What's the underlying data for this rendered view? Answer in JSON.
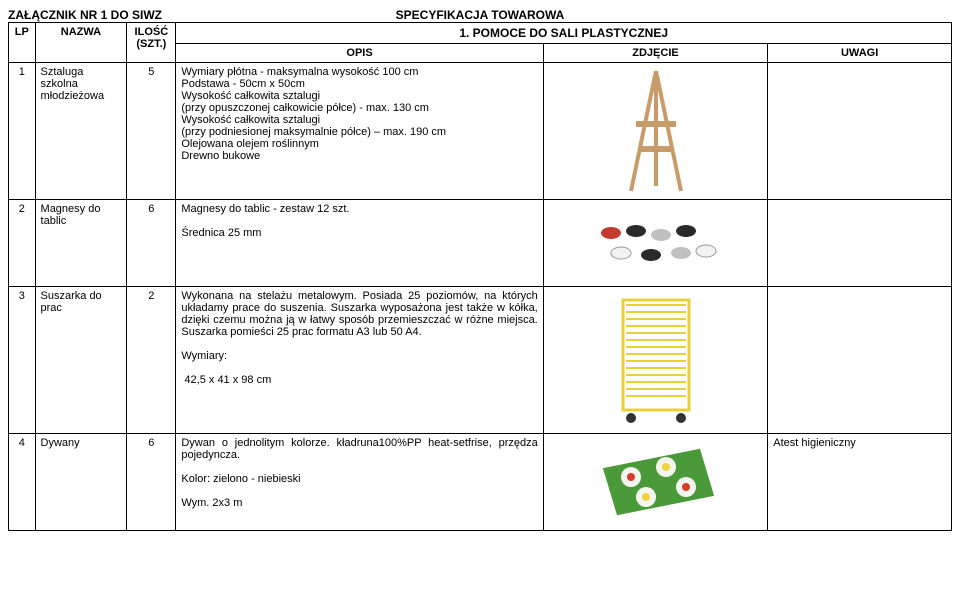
{
  "doc": {
    "attachment_title": "ZAŁĄCZNIK NR 1 DO SIWZ",
    "spec_title": "SPECYFIKACJA TOWAROWA",
    "section_heading": "1. POMOCE DO SALI PLASTYCZNEJ"
  },
  "columns": {
    "lp": "LP",
    "nazwa": "NAZWA",
    "ilosc": "ILOŚĆ (SZT.)",
    "opis": "OPIS",
    "zdjecie": "ZDJĘCIE",
    "uwagi": "UWAGI"
  },
  "rows": [
    {
      "lp": "1",
      "nazwa": "Sztaluga szkolna młodzieżowa",
      "ilosc": "5",
      "opis": "Wymiary płótna - maksymalna wysokość 100 cm\nPodstawa - 50cm x 50cm\nWysokość całkowita sztalugi\n(przy opuszczonej całkowicie półce) - max. 130 cm\nWysokość całkowita sztalugi\n(przy podniesionej maksymalnie półce) – max. 190 cm\nOlejowana olejem roślinnym\nDrewno bukowe",
      "uwagi": "",
      "image": "easel"
    },
    {
      "lp": "2",
      "nazwa": "Magnesy do tablic",
      "ilosc": "6",
      "opis": "Magnesy do tablic - zestaw 12 szt.\n\nŚrednica 25 mm",
      "uwagi": "",
      "image": "magnets"
    },
    {
      "lp": "3",
      "nazwa": "Suszarka do prac",
      "ilosc": "2",
      "opis": "Wykonana na stelażu metalowym. Posiada 25 poziomów, na których układamy prace do suszenia. Suszarka wyposażona jest także w kółka, dzięki czemu można ją w łatwy sposób przemieszczać w różne miejsca. Suszarka pomieści 25 prac formatu A3 lub 50 A4.\n\nWymiary:\n\n 42,5 x 41 x 98 cm",
      "uwagi": "",
      "image": "rack"
    },
    {
      "lp": "4",
      "nazwa": "Dywany",
      "ilosc": "6",
      "opis": "Dywan o jednolitym kolorze. kładruna100%PP heat-setfrise, przędza pojedyncza.\n\nKolor: zielono - niebieski\n\nWym. 2x3 m",
      "uwagi": "Atest higieniczny",
      "image": "carpet"
    }
  ],
  "colors": {
    "easel_wood": "#c89b6a",
    "magnet_red": "#c23b2e",
    "magnet_black": "#2a2a2a",
    "magnet_grey": "#c0c0c0",
    "magnet_white": "#f2f2f2",
    "rack_yellow": "#e8d13a",
    "carpet_green": "#4a9a3a",
    "carpet_white": "#f5f5f0",
    "carpet_red": "#d73a2a",
    "carpet_yellow": "#f2d33a"
  }
}
